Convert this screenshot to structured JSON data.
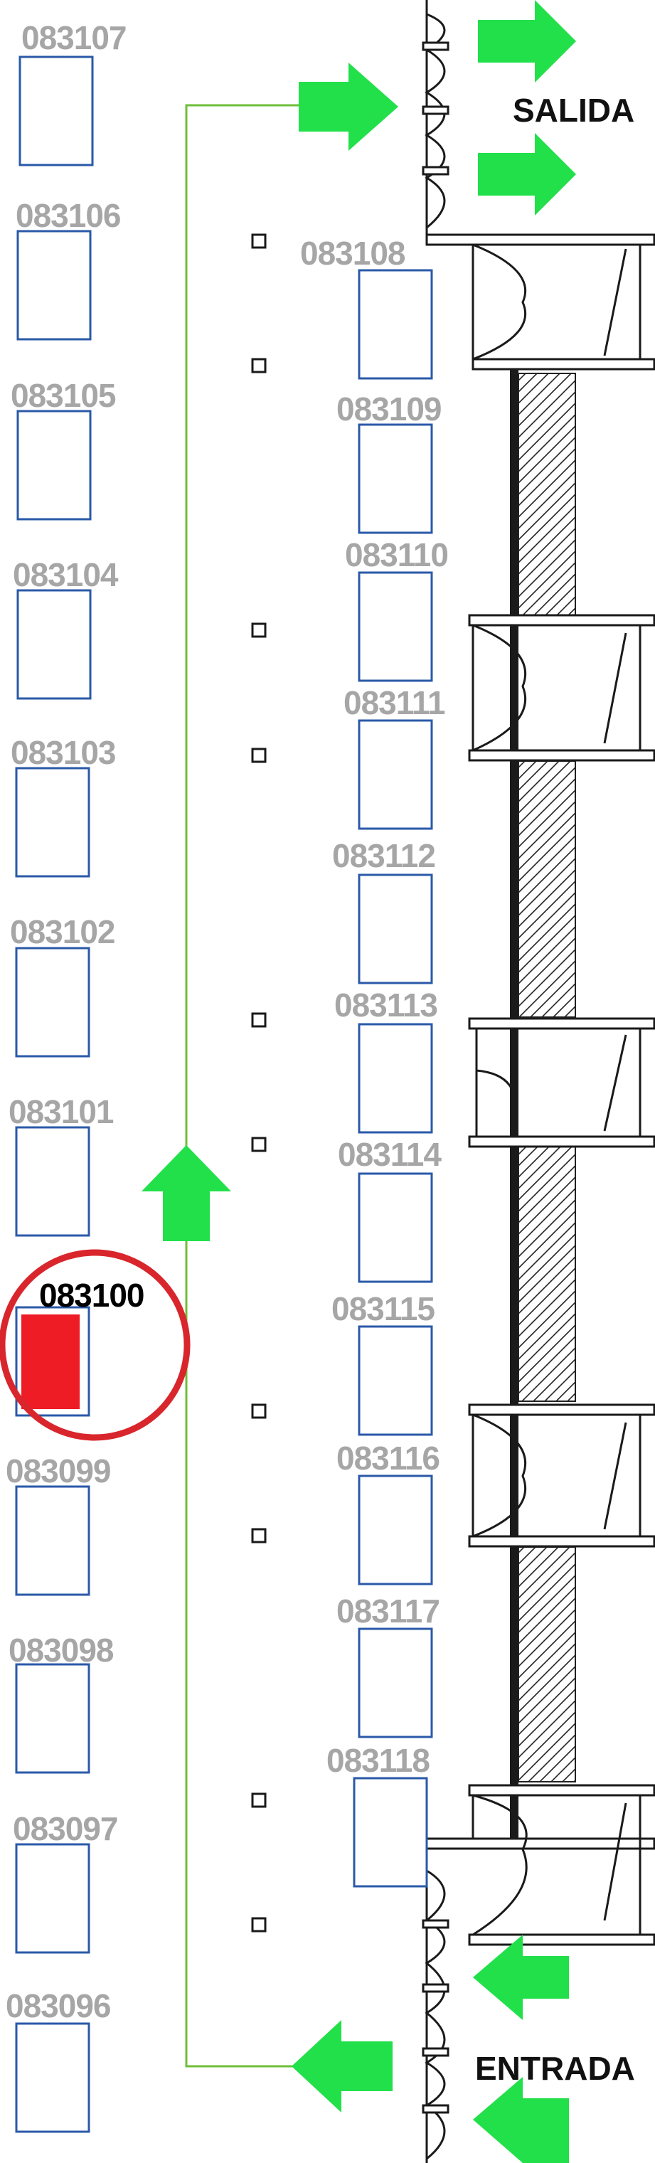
{
  "colors": {
    "accent_arrow": "#22e04a",
    "route_line": "#6fbf3a",
    "spot_outline": "#2a59a8",
    "selected_fill": "#ee1c24",
    "selected_ring": "#d8262c",
    "label_gray": "#a6a6a6",
    "structure": "#1a1a1a"
  },
  "icons": {
    "arrow": "green-arrow-icon",
    "selected_marker": "red-circle-icon",
    "column": "column-square-icon",
    "door": "door-swing-icon"
  },
  "signs": {
    "exit": "SALIDA",
    "entrance": "ENTRADA"
  },
  "selected_spot": "083100",
  "left_spots": [
    "083107",
    "083106",
    "083105",
    "083104",
    "083103",
    "083102",
    "083101",
    "083100",
    "083099",
    "083098",
    "083097",
    "083096"
  ],
  "right_spots": [
    "083108",
    "083109",
    "083110",
    "083111",
    "083112",
    "083113",
    "083114",
    "083115",
    "083116",
    "083117",
    "083118"
  ]
}
